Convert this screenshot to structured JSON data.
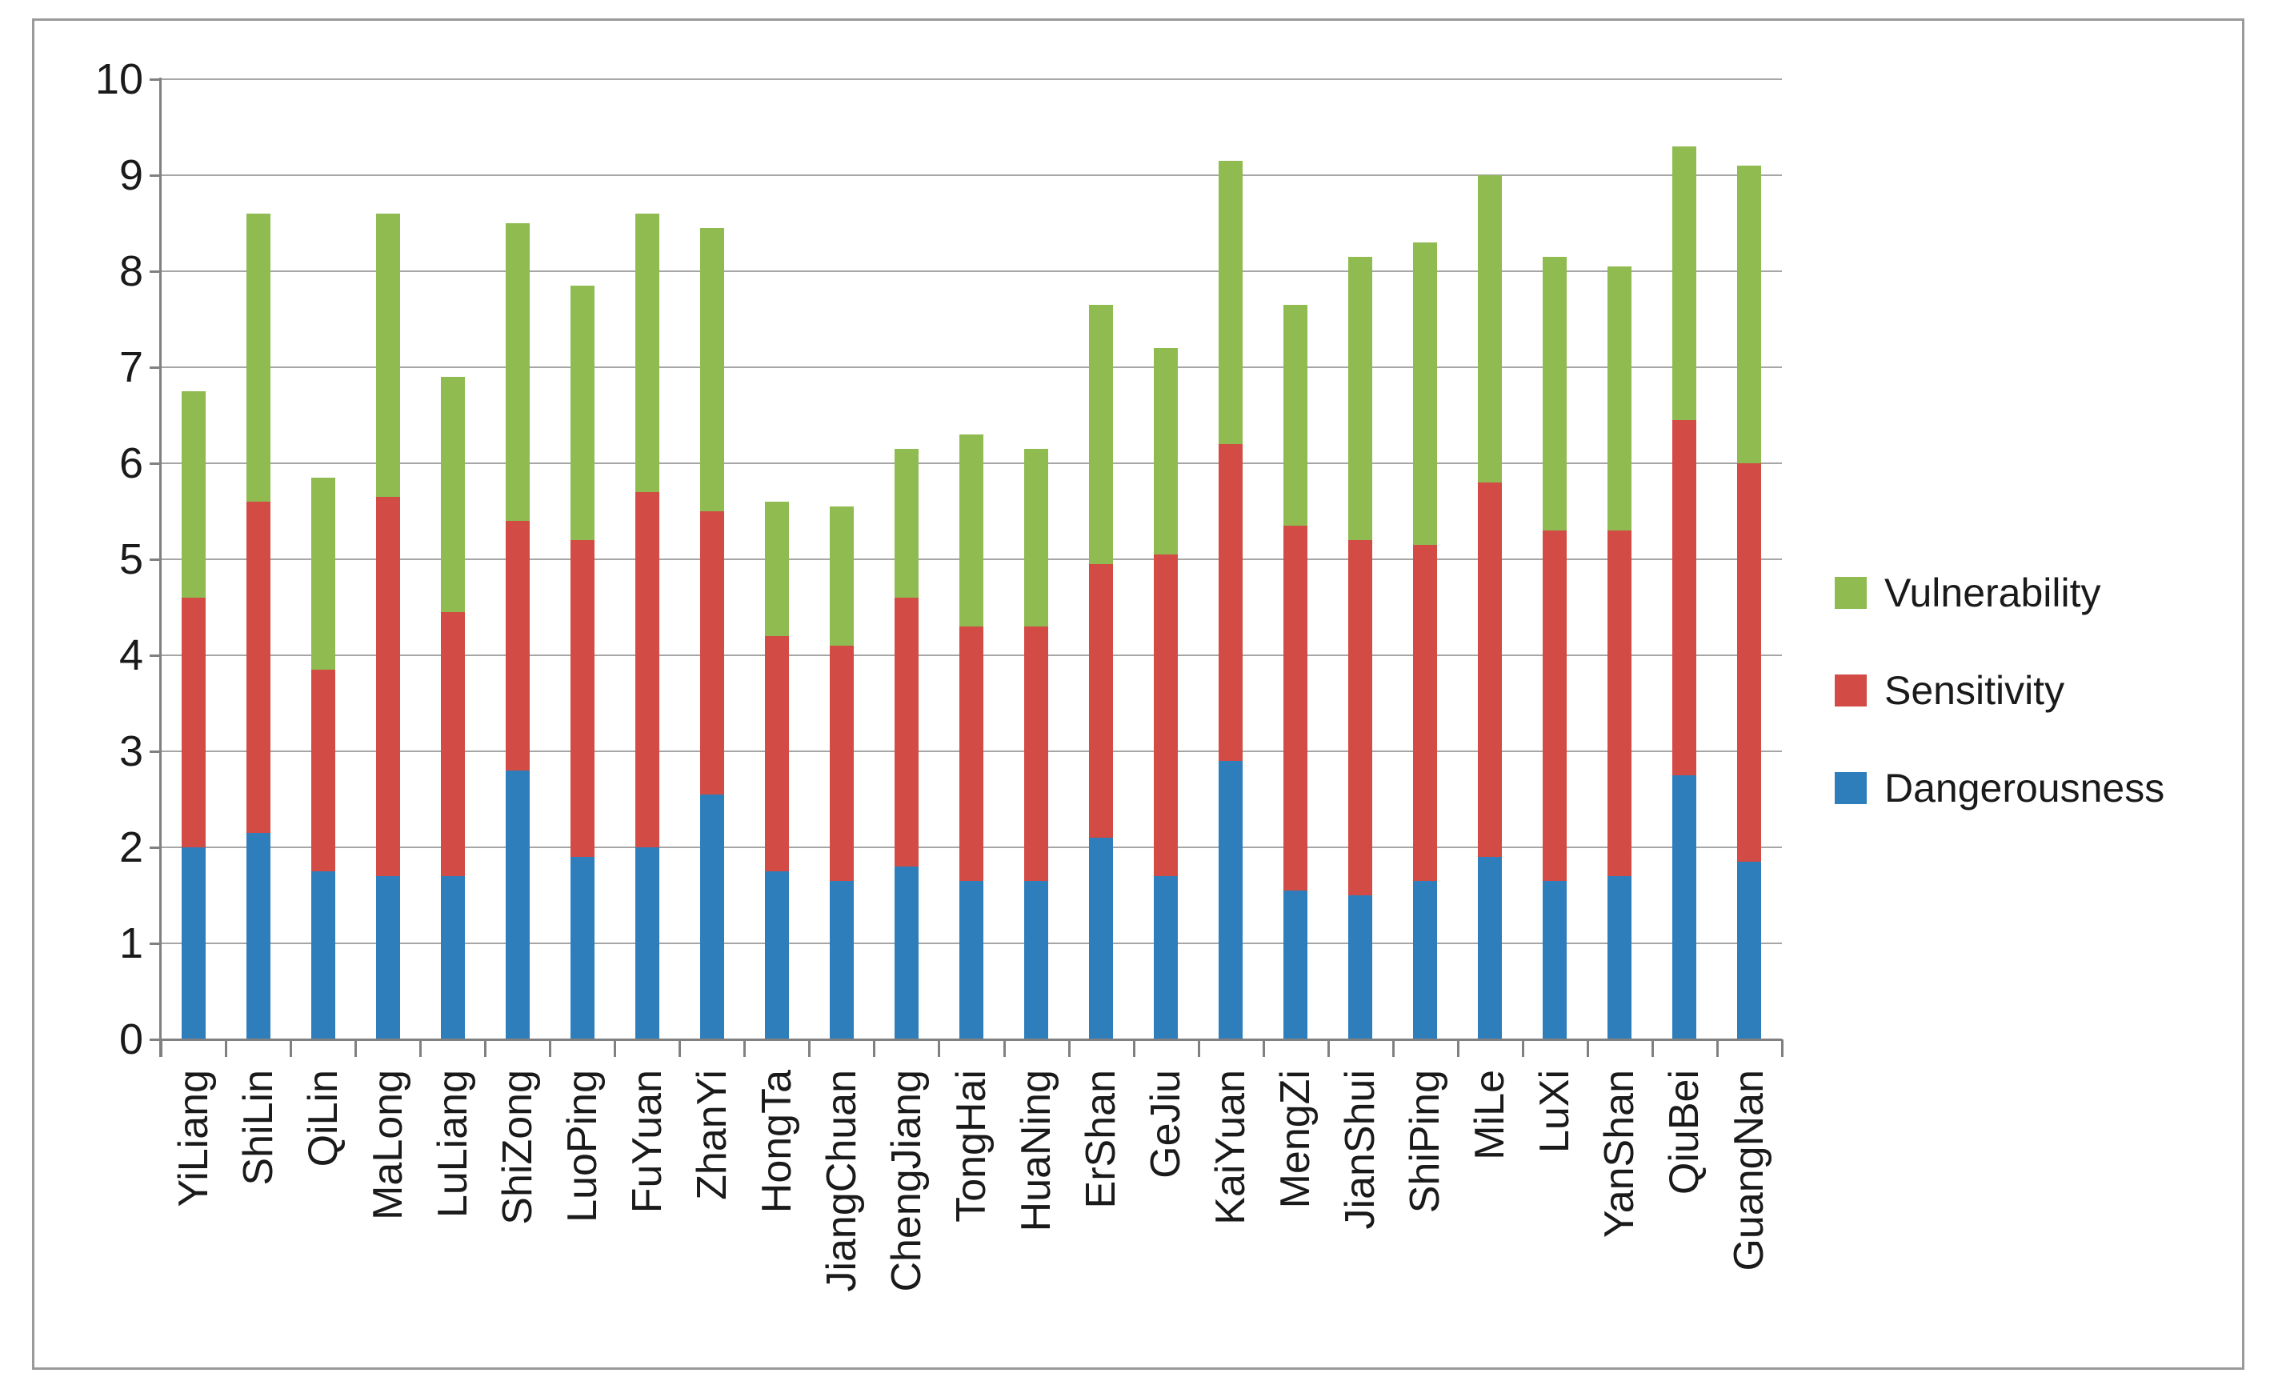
{
  "chart_data": {
    "type": "bar",
    "stacked": true,
    "title": "",
    "xlabel": "",
    "ylabel": "",
    "categories": [
      "YiLiang",
      "ShiLin",
      "QiLin",
      "MaLong",
      "LuLiang",
      "ShiZong",
      "LuoPing",
      "FuYuan",
      "ZhanYi",
      "HongTa",
      "JiangChuan",
      "ChengJiang",
      "TongHai",
      "HuaNing",
      "ErShan",
      "GeJiu",
      "KaiYuan",
      "MengZi",
      "JianShui",
      "ShiPing",
      "MiLe",
      "LuXi",
      "YanShan",
      "QiuBei",
      "GuangNan"
    ],
    "series": [
      {
        "name": "Dangerousness",
        "color": "#2E7EBC",
        "values": [
          2.0,
          2.15,
          1.75,
          1.7,
          1.7,
          2.8,
          1.9,
          2.0,
          2.55,
          1.75,
          1.65,
          1.8,
          1.65,
          1.65,
          2.1,
          1.7,
          2.9,
          1.55,
          1.5,
          1.65,
          1.9,
          1.65,
          1.7,
          2.75,
          1.85
        ]
      },
      {
        "name": "Sensitivity",
        "color": "#D24B45",
        "values": [
          2.6,
          3.45,
          2.1,
          3.95,
          2.75,
          2.6,
          3.3,
          3.7,
          2.95,
          2.45,
          2.45,
          2.8,
          2.65,
          2.65,
          2.85,
          3.35,
          3.3,
          3.8,
          3.7,
          3.5,
          3.9,
          3.65,
          3.6,
          3.7,
          4.15
        ]
      },
      {
        "name": "Vulnerability",
        "color": "#8FBB51",
        "values": [
          2.15,
          3.0,
          2.0,
          2.95,
          2.45,
          3.1,
          2.65,
          2.9,
          2.95,
          1.4,
          1.45,
          1.55,
          2.0,
          1.85,
          2.7,
          2.15,
          2.95,
          2.3,
          2.95,
          3.15,
          3.2,
          2.85,
          2.75,
          2.85,
          3.1
        ]
      }
    ],
    "totals": [
      6.75,
      8.6,
      5.85,
      8.6,
      6.9,
      8.5,
      7.85,
      8.6,
      8.45,
      5.6,
      5.55,
      6.15,
      6.3,
      6.15,
      7.65,
      7.2,
      9.15,
      7.65,
      8.15,
      8.3,
      9.0,
      8.15,
      8.05,
      9.3,
      9.1
    ],
    "ylim": [
      0,
      10
    ],
    "yticks": [
      0,
      1,
      2,
      3,
      4,
      5,
      6,
      7,
      8,
      9,
      10
    ],
    "grid": "horizontal",
    "legend": {
      "position": "right",
      "items": [
        {
          "label": "Vulnerability"
        },
        {
          "label": "Sensitivity"
        },
        {
          "label": "Dangerousness"
        }
      ]
    }
  },
  "style": {
    "background": "#FFFFFF",
    "frame_border": "#9A9A9A",
    "gridline": "#A6A6A6",
    "axis": "#808080",
    "text": "#1A1A1A"
  }
}
